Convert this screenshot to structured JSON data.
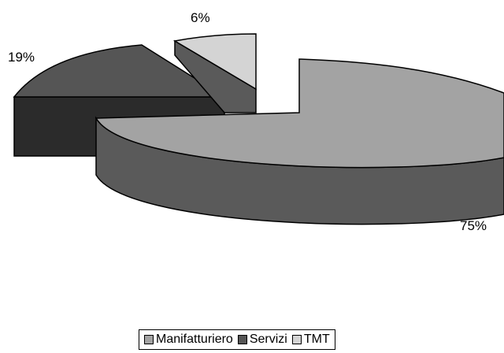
{
  "chart_data": {
    "type": "pie",
    "title": "",
    "categories": [
      "Manifatturiero",
      "Servizi",
      "TMT"
    ],
    "values": [
      75,
      19,
      6
    ],
    "labels": [
      "75%",
      "19%",
      "6%"
    ],
    "exploded": true,
    "three_d": true,
    "legend_position": "bottom",
    "colors": {
      "Manifatturiero": "#a3a3a3",
      "Servizi": "#555555",
      "TMT": "#d4d4d4"
    }
  }
}
